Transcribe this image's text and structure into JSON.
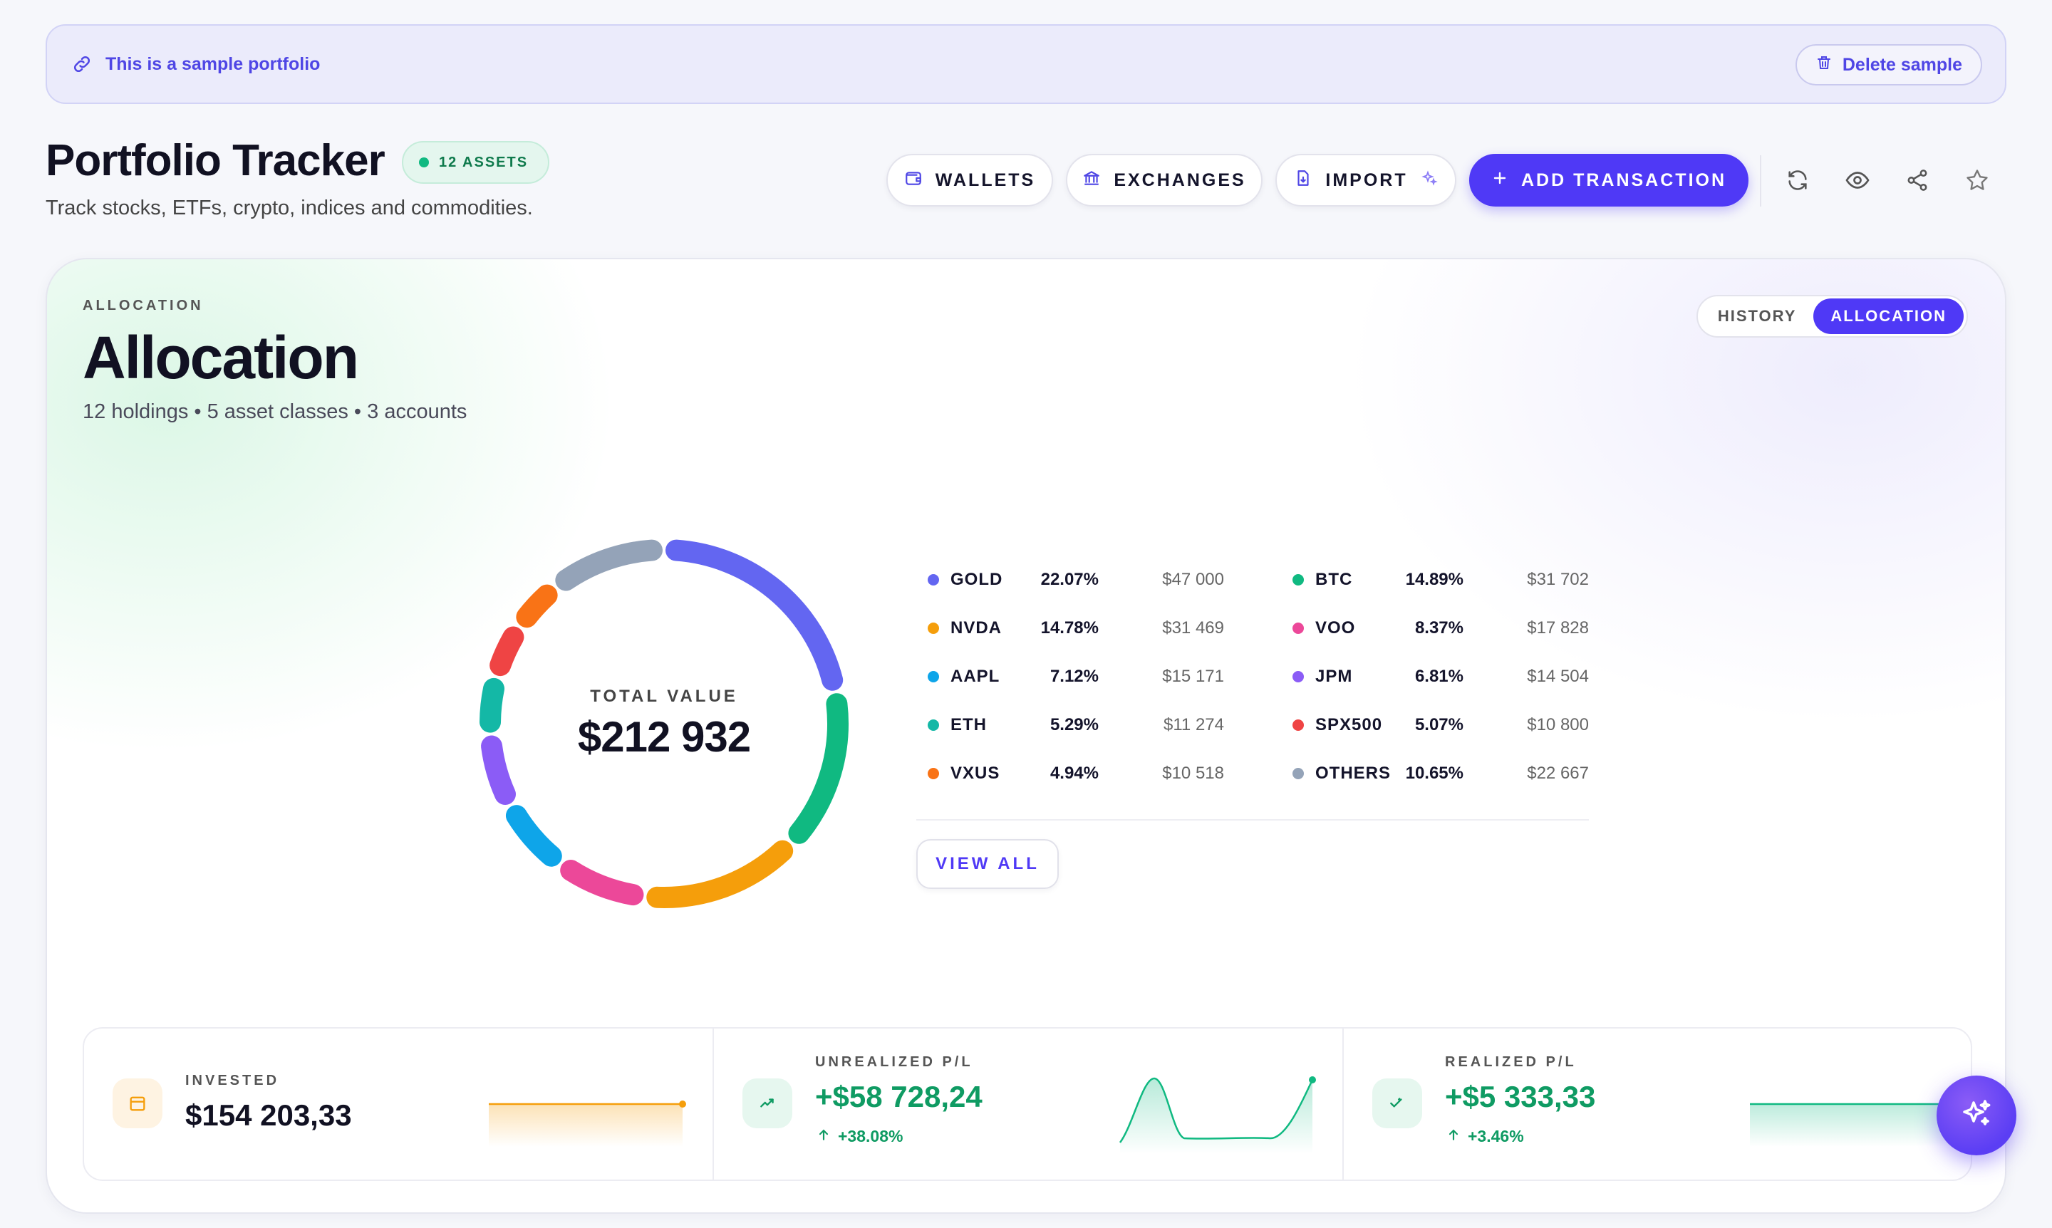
{
  "banner": {
    "text": "This is a sample portfolio",
    "delete_label": "Delete sample"
  },
  "header": {
    "title": "Portfolio Tracker",
    "assets_badge": "12 ASSETS",
    "subtitle": "Track stocks, ETFs, crypto, indices and commodities.",
    "buttons": {
      "wallets": "WALLETS",
      "exchanges": "EXCHANGES",
      "import": "IMPORT",
      "add_transaction": "ADD TRANSACTION"
    },
    "icons": [
      "refresh-icon",
      "eye-icon",
      "share-icon",
      "star-icon"
    ]
  },
  "allocation": {
    "kicker": "ALLOCATION",
    "title": "Allocation",
    "summary": "12 holdings • 5 asset classes • 3 accounts",
    "view_toggle": {
      "history": "HISTORY",
      "allocation": "ALLOCATION",
      "active": "allocation"
    },
    "total_label": "TOTAL VALUE",
    "total_value": "$212 932",
    "view_all": "VIEW ALL",
    "holdings": [
      {
        "ticker": "GOLD",
        "pct": "22.07%",
        "value": "$47 000",
        "share": 22.07,
        "color": "#6366f1"
      },
      {
        "ticker": "BTC",
        "pct": "14.89%",
        "value": "$31 702",
        "share": 14.89,
        "color": "#10b981"
      },
      {
        "ticker": "NVDA",
        "pct": "14.78%",
        "value": "$31 469",
        "share": 14.78,
        "color": "#f59e0b"
      },
      {
        "ticker": "VOO",
        "pct": "8.37%",
        "value": "$17 828",
        "share": 8.37,
        "color": "#ec4899"
      },
      {
        "ticker": "AAPL",
        "pct": "7.12%",
        "value": "$15 171",
        "share": 7.12,
        "color": "#0ea5e9"
      },
      {
        "ticker": "JPM",
        "pct": "6.81%",
        "value": "$14 504",
        "share": 6.81,
        "color": "#8b5cf6"
      },
      {
        "ticker": "ETH",
        "pct": "5.29%",
        "value": "$11 274",
        "share": 5.29,
        "color": "#14b8a6"
      },
      {
        "ticker": "SPX500",
        "pct": "5.07%",
        "value": "$10 800",
        "share": 5.07,
        "color": "#ef4444"
      },
      {
        "ticker": "VXUS",
        "pct": "4.94%",
        "value": "$10 518",
        "share": 4.94,
        "color": "#f97316"
      },
      {
        "ticker": "OTHERS",
        "pct": "10.65%",
        "value": "$22 667",
        "share": 10.65,
        "color": "#94a3b8"
      }
    ]
  },
  "stats": {
    "invested": {
      "label": "INVESTED",
      "value": "$154 203,33",
      "color": "#f59e0b"
    },
    "unrealized": {
      "label": "UNREALIZED P/L",
      "value": "+$58 728,24",
      "delta": "+38.08%",
      "color": "#10b981"
    },
    "realized": {
      "label": "REALIZED P/L",
      "value": "+$5 333,33",
      "delta": "+3.46%",
      "color": "#10b981"
    }
  }
}
